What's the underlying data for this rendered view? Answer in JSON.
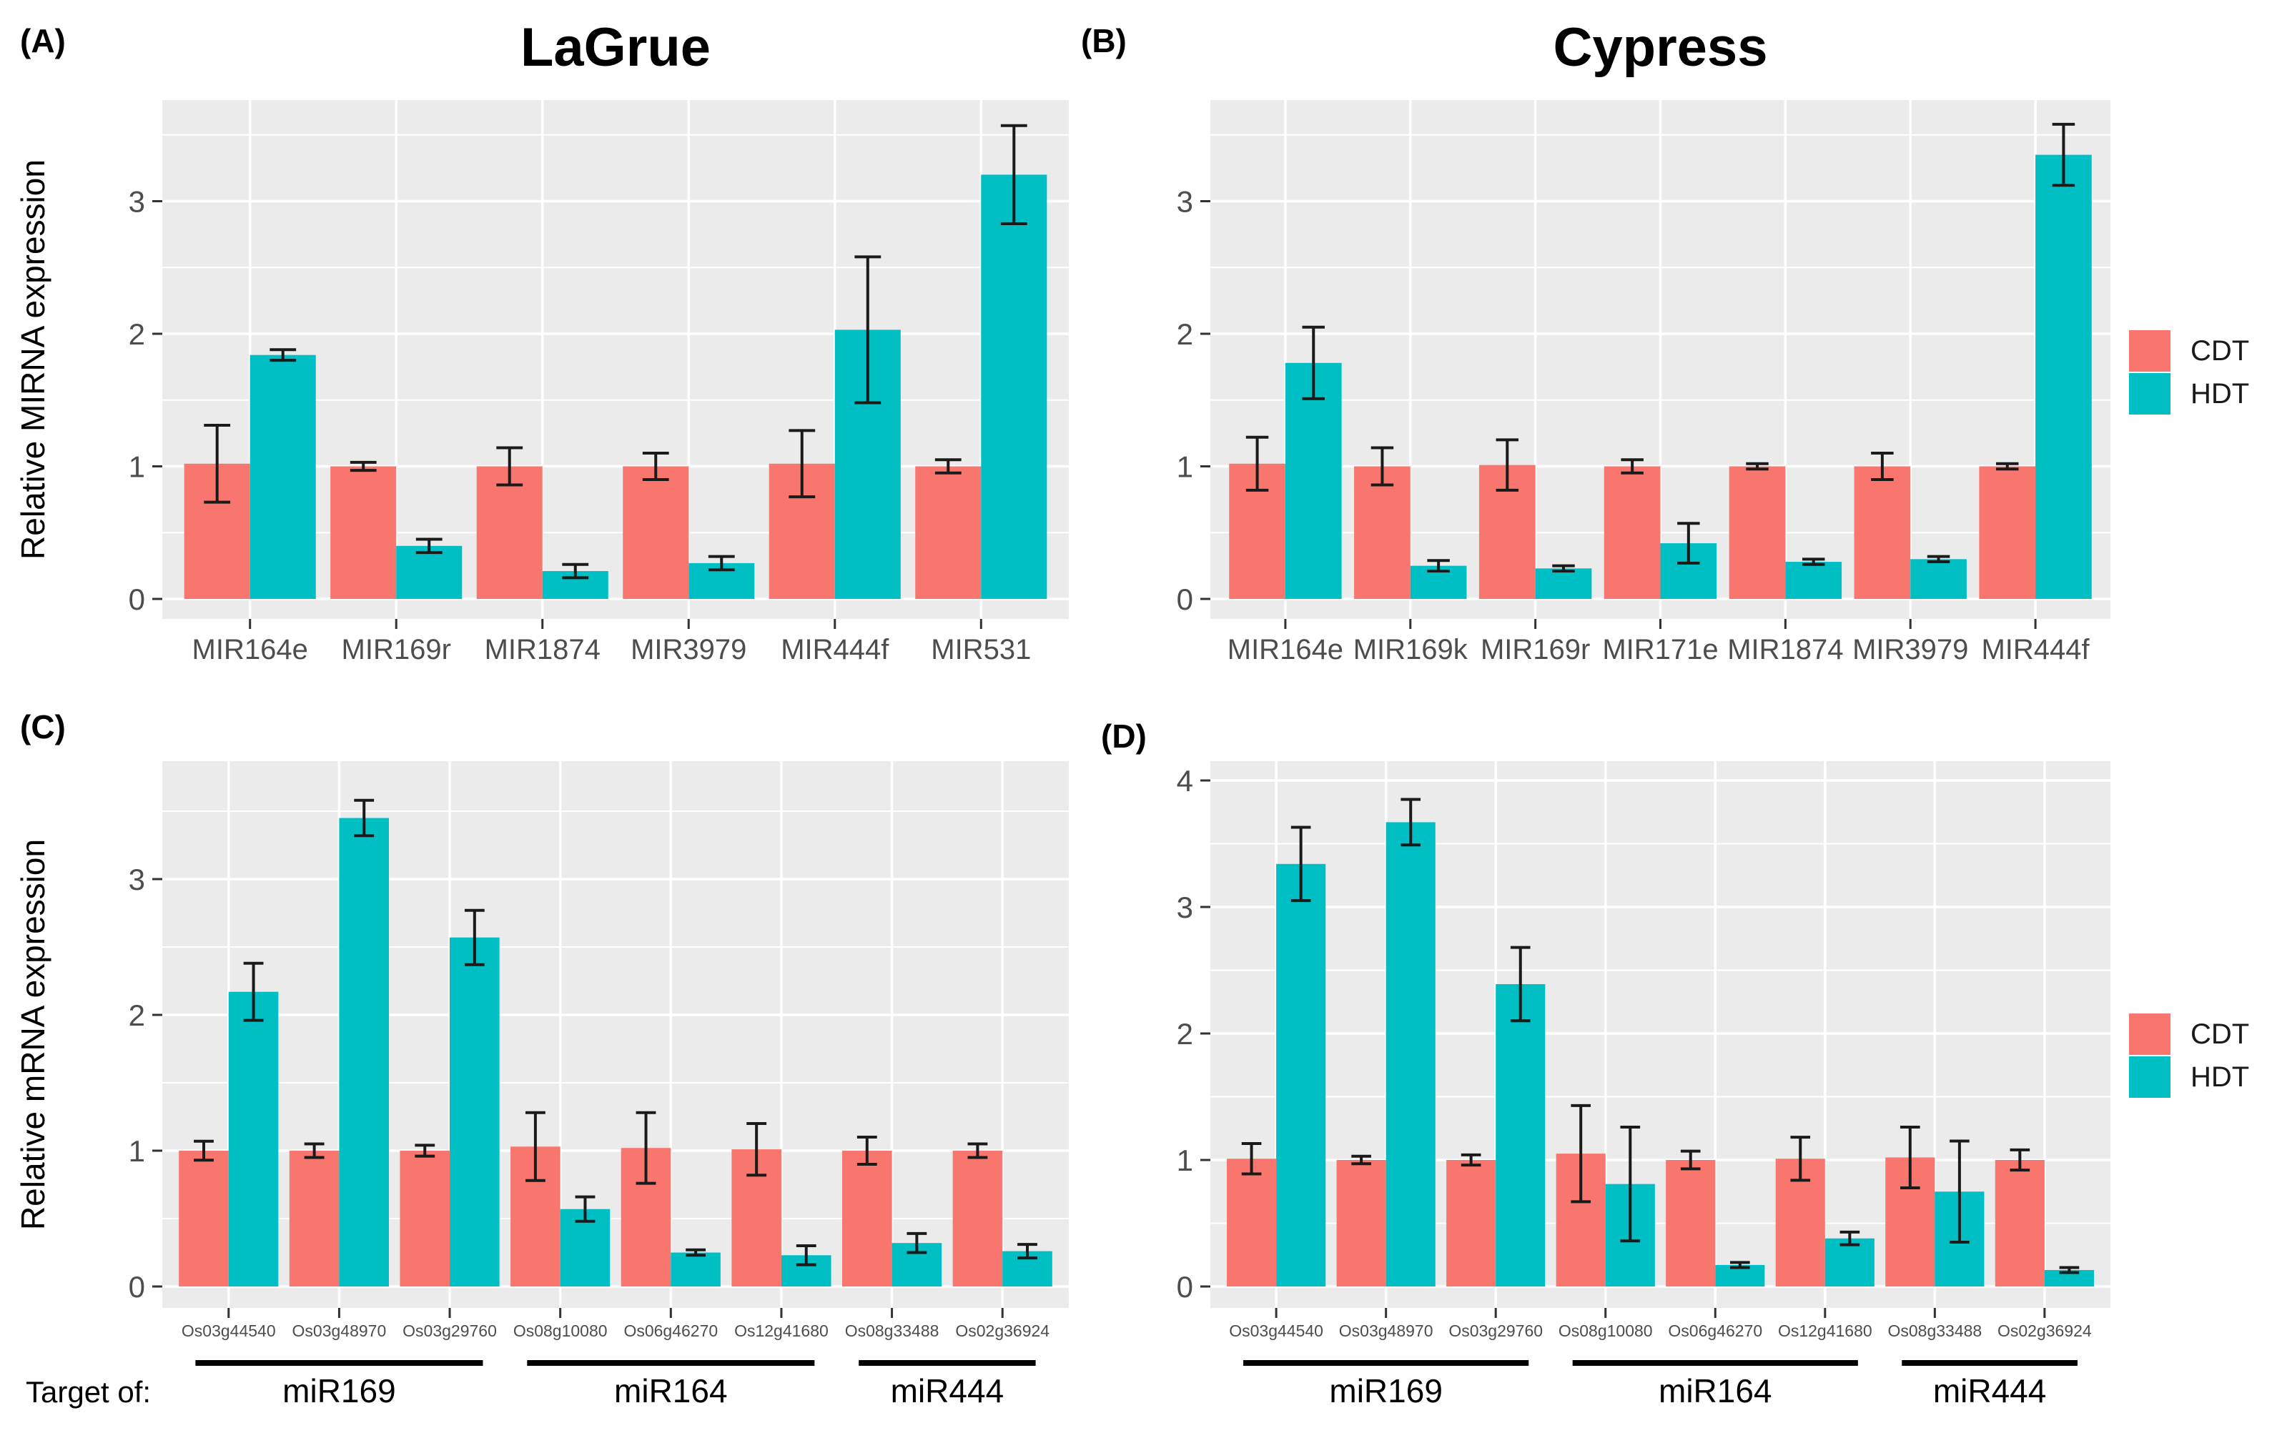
{
  "figure": {
    "legend": {
      "items": [
        {
          "label": "CDT",
          "color": "#F8766D"
        },
        {
          "label": "HDT",
          "color": "#00BFC4"
        }
      ],
      "position": "right"
    },
    "colors": {
      "panel_background": "#EBEBEB",
      "gridline": "#FFFFFF",
      "axis_text": "#4D4D4D",
      "axis_ticks": "#333333",
      "error_bar": "#1A1A1A",
      "group_line": "#000000",
      "title_text": "#000000"
    }
  },
  "chart_data": [
    {
      "id": "A",
      "panel_tag": "(A)",
      "type": "bar",
      "title": "LaGrue",
      "ylabel": "Relative MIRNA expression",
      "xlabel": "",
      "grid": true,
      "legend_position": "right",
      "ylim": [
        0,
        3.76
      ],
      "yticks": [
        0,
        1,
        2,
        3
      ],
      "categories": [
        "MIR164e",
        "MIR169r",
        "MIR1874",
        "MIR3979",
        "MIR444f",
        "MIR531"
      ],
      "series": [
        {
          "name": "CDT",
          "color": "#F8766D",
          "values": [
            1.02,
            1.0,
            1.0,
            1.0,
            1.02,
            1.0
          ],
          "errors": [
            0.29,
            0.03,
            0.14,
            0.1,
            0.25,
            0.05
          ]
        },
        {
          "name": "HDT",
          "color": "#00BFC4",
          "values": [
            1.84,
            0.4,
            0.21,
            0.27,
            2.03,
            3.2
          ],
          "errors": [
            0.04,
            0.05,
            0.05,
            0.05,
            0.55,
            0.37
          ]
        }
      ]
    },
    {
      "id": "B",
      "panel_tag": "(B)",
      "type": "bar",
      "title": "Cypress",
      "ylabel": "",
      "xlabel": "",
      "grid": true,
      "legend_position": "right",
      "ylim": [
        0,
        3.76
      ],
      "yticks": [
        0,
        1,
        2,
        3
      ],
      "categories": [
        "MIR164e",
        "MIR169k",
        "MIR169r",
        "MIR171e",
        "MIR1874",
        "MIR3979",
        "MIR444f"
      ],
      "series": [
        {
          "name": "CDT",
          "color": "#F8766D",
          "values": [
            1.02,
            1.0,
            1.01,
            1.0,
            1.0,
            1.0,
            1.0
          ],
          "errors": [
            0.2,
            0.14,
            0.19,
            0.05,
            0.02,
            0.1,
            0.02
          ]
        },
        {
          "name": "HDT",
          "color": "#00BFC4",
          "values": [
            1.78,
            0.25,
            0.23,
            0.42,
            0.28,
            0.3,
            3.35
          ],
          "errors": [
            0.27,
            0.04,
            0.02,
            0.15,
            0.02,
            0.02,
            0.23
          ]
        }
      ]
    },
    {
      "id": "C",
      "panel_tag": "(C)",
      "type": "bar",
      "title": "",
      "ylabel": "Relative mRNA expression",
      "xlabel": "",
      "grid": true,
      "legend_position": "right",
      "ylim": [
        0,
        3.87
      ],
      "yticks": [
        0,
        1,
        2,
        3
      ],
      "target_of": "Target of:",
      "categories": [
        "Os03g44540",
        "Os03g48970",
        "Os03g29760",
        "Os08g10080",
        "Os06g46270",
        "Os12g41680",
        "Os08g33488",
        "Os02g36924"
      ],
      "groups": [
        {
          "label": "miR169",
          "span": [
            0,
            2
          ]
        },
        {
          "label": "miR164",
          "span": [
            3,
            5
          ]
        },
        {
          "label": "miR444",
          "span": [
            6,
            7
          ]
        }
      ],
      "series": [
        {
          "name": "CDT",
          "color": "#F8766D",
          "values": [
            1.0,
            1.0,
            1.0,
            1.03,
            1.02,
            1.01,
            1.0,
            1.0
          ],
          "errors": [
            0.07,
            0.05,
            0.04,
            0.25,
            0.26,
            0.19,
            0.1,
            0.05
          ]
        },
        {
          "name": "HDT",
          "color": "#00BFC4",
          "values": [
            2.17,
            3.45,
            2.57,
            0.57,
            0.25,
            0.23,
            0.32,
            0.26
          ],
          "errors": [
            0.21,
            0.13,
            0.2,
            0.09,
            0.02,
            0.07,
            0.07,
            0.05
          ]
        }
      ]
    },
    {
      "id": "D",
      "panel_tag": "(D)",
      "type": "bar",
      "title": "",
      "ylabel": "",
      "xlabel": "",
      "grid": true,
      "legend_position": "right",
      "ylim": [
        0,
        4.15
      ],
      "yticks": [
        0,
        1,
        2,
        3,
        4
      ],
      "categories": [
        "Os03g44540",
        "Os03g48970",
        "Os03g29760",
        "Os08g10080",
        "Os06g46270",
        "Os12g41680",
        "Os08g33488",
        "Os02g36924"
      ],
      "groups": [
        {
          "label": "miR169",
          "span": [
            0,
            2
          ]
        },
        {
          "label": "miR164",
          "span": [
            3,
            5
          ]
        },
        {
          "label": "miR444",
          "span": [
            6,
            7
          ]
        }
      ],
      "series": [
        {
          "name": "CDT",
          "color": "#F8766D",
          "values": [
            1.01,
            1.0,
            1.0,
            1.05,
            1.0,
            1.01,
            1.02,
            1.0
          ],
          "errors": [
            0.12,
            0.03,
            0.04,
            0.38,
            0.07,
            0.17,
            0.24,
            0.08
          ]
        },
        {
          "name": "HDT",
          "color": "#00BFC4",
          "values": [
            3.34,
            3.67,
            2.39,
            0.81,
            0.17,
            0.38,
            0.75,
            0.13
          ],
          "errors": [
            0.29,
            0.18,
            0.29,
            0.45,
            0.02,
            0.05,
            0.4,
            0.02
          ]
        }
      ]
    }
  ]
}
